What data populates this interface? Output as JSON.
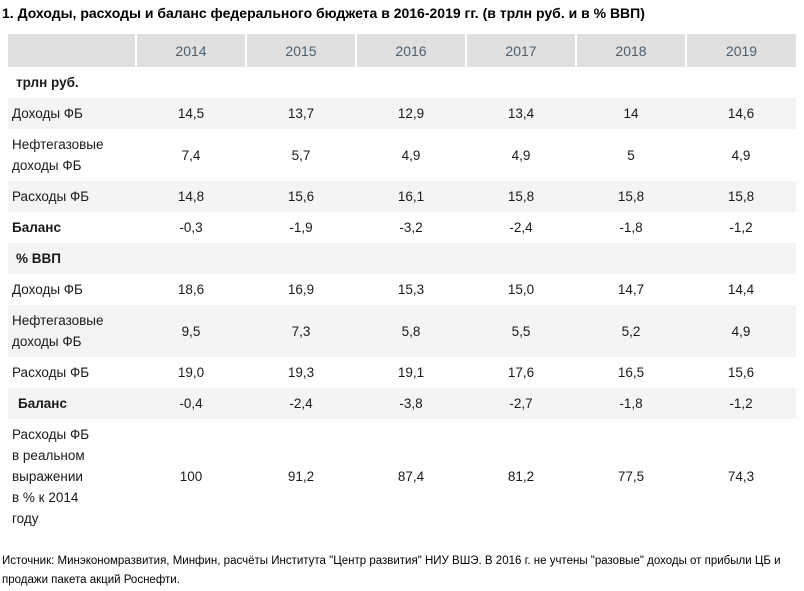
{
  "title": "1. Доходы, расходы и баланс федерального бюджета в 2016-2019 гг. (в трлн руб. и в % ВВП)",
  "colors": {
    "header_bg": "#e0e0e0",
    "header_text": "#4c5f6e",
    "row_alt_bg": "#f4f4f4",
    "body_text": "#1a1a1a"
  },
  "table": {
    "years": [
      "2014",
      "2015",
      "2016",
      "2017",
      "2018",
      "2019"
    ],
    "rows": [
      {
        "label": "трлн руб.",
        "type": "section",
        "values": []
      },
      {
        "label": "Доходы ФБ",
        "type": "data",
        "values": [
          "14,5",
          "13,7",
          "12,9",
          "13,4",
          "14",
          "14,6"
        ]
      },
      {
        "label": "Нефтегазовые\nдоходы ФБ",
        "type": "data",
        "values": [
          "7,4",
          "5,7",
          "4,9",
          "4,9",
          "5",
          "4,9"
        ]
      },
      {
        "label": "Расходы ФБ",
        "type": "data",
        "values": [
          "14,8",
          "15,6",
          "16,1",
          "15,8",
          "15,8",
          "15,8"
        ]
      },
      {
        "label": "Баланс",
        "type": "data-bold",
        "values": [
          "-0,3",
          "-1,9",
          "-3,2",
          "-2,4",
          "-1,8",
          "-1,2"
        ]
      },
      {
        "label": "% ВВП",
        "type": "section",
        "values": []
      },
      {
        "label": "Доходы ФБ",
        "type": "data",
        "values": [
          "18,6",
          "16,9",
          "15,3",
          "15,0",
          "14,7",
          "14,4"
        ]
      },
      {
        "label": "Нефтегазовые\nдоходы ФБ",
        "type": "data",
        "values": [
          "9,5",
          "7,3",
          "5,8",
          "5,5",
          "5,2",
          "4,9"
        ]
      },
      {
        "label": "Расходы ФБ",
        "type": "data",
        "values": [
          "19,0",
          "19,3",
          "19,1",
          "17,6",
          "16,5",
          "15,6"
        ]
      },
      {
        "label": "Баланс",
        "type": "data-bold",
        "values": [
          "-0,4",
          "-2,4",
          "-3,8",
          "-2,7",
          "-1,8",
          "-1,2"
        ]
      },
      {
        "label": "Расходы ФБ\nв реальном\nвыражении\nв % к 2014\nгоду",
        "type": "data",
        "values": [
          "100",
          "91,2",
          "87,4",
          "81,2",
          "77,5",
          "74,3"
        ]
      }
    ]
  },
  "footer": {
    "source": "Источник: Минэкономразвития, Минфин, расчёты Института \"Центр развития\" НИУ ВШЭ. В 2016 г. не учтены \"разовые\" доходы от прибыли ЦБ и продажи пакета акций Роснефти."
  }
}
